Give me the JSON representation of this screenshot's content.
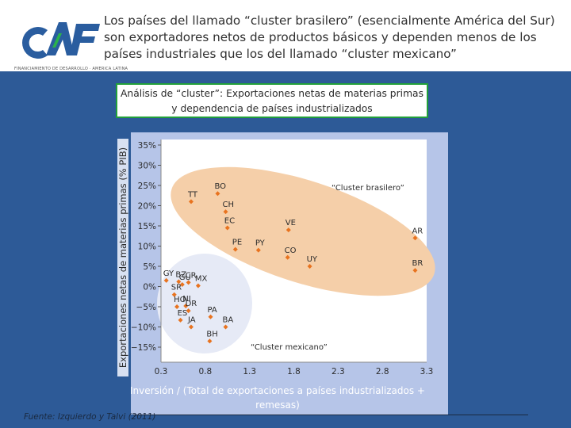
{
  "header": {
    "title": "Los países del llamado “cluster brasilero” (esencialmente América del Sur) son exportadores netos de productos básicos y dependen menos de los países industriales que los del llamado “cluster mexicano”",
    "logo_text": "CAF",
    "logo_tagline": "FINANCIAMIENTO DE DESARROLLO · AMERICA LATINA",
    "logo_color": "#2a5d9f",
    "logo_accent": "#2bb24c"
  },
  "source": "Fuente: Izquierdo y Talvi (2011)",
  "chart_data": {
    "type": "scatter",
    "title": "Análisis de “cluster”: Exportaciones netas de materias primas y dependencia de países industrializados",
    "xlabel": "Inversión / (Total de exportaciones a países industrializados + remesas)",
    "ylabel": "Exportaciones netas de materias primas (% PIB)",
    "xlim": [
      0.3,
      3.3
    ],
    "ylim": [
      -17,
      36
    ],
    "x_ticks": [
      "0.3",
      "0.8",
      "1.3",
      "1.8",
      "2.3",
      "2.8",
      "3.3"
    ],
    "y_ticks": [
      "35%",
      "30%",
      "25%",
      "20%",
      "15%",
      "10%",
      "5%",
      "0%",
      "−5%",
      "−10%",
      "−15%"
    ],
    "grid": false,
    "point_color": "#e8731f",
    "series": [
      {
        "name": "“Cluster brasilero”",
        "color": "#f5cfa9",
        "points": [
          {
            "label": "TT",
            "x": 0.64,
            "y": 21.0
          },
          {
            "label": "BO",
            "x": 0.94,
            "y": 23.0
          },
          {
            "label": "CH",
            "x": 1.03,
            "y": 18.5
          },
          {
            "label": "EC",
            "x": 1.05,
            "y": 14.5
          },
          {
            "label": "VE",
            "x": 1.74,
            "y": 14.0
          },
          {
            "label": "PE",
            "x": 1.14,
            "y": 9.2
          },
          {
            "label": "PY",
            "x": 1.4,
            "y": 9.0
          },
          {
            "label": "CO",
            "x": 1.73,
            "y": 7.2
          },
          {
            "label": "UY",
            "x": 1.98,
            "y": 5.0
          },
          {
            "label": "AR",
            "x": 3.17,
            "y": 12.0
          },
          {
            "label": "BR",
            "x": 3.17,
            "y": 4.0
          }
        ]
      },
      {
        "name": "“Cluster mexicano”",
        "color": "#e6eaf6",
        "points": [
          {
            "label": "GY",
            "x": 0.36,
            "y": 1.5
          },
          {
            "label": "BZ",
            "x": 0.5,
            "y": 1.2
          },
          {
            "label": "CR",
            "x": 0.61,
            "y": 1.0
          },
          {
            "label": "GU",
            "x": 0.54,
            "y": 0.5
          },
          {
            "label": "MX",
            "x": 0.72,
            "y": 0.2
          },
          {
            "label": "SR",
            "x": 0.45,
            "y": -2.0
          },
          {
            "label": "NI",
            "x": 0.58,
            "y": -4.8
          },
          {
            "label": "HO",
            "x": 0.48,
            "y": -5.0
          },
          {
            "label": "DR",
            "x": 0.61,
            "y": -6.0
          },
          {
            "label": "ES",
            "x": 0.52,
            "y": -8.3
          },
          {
            "label": "PA",
            "x": 0.86,
            "y": -7.5
          },
          {
            "label": "JA",
            "x": 0.64,
            "y": -10.0
          },
          {
            "label": "BA",
            "x": 1.03,
            "y": -10.0
          },
          {
            "label": "BH",
            "x": 0.85,
            "y": -13.5
          }
        ]
      }
    ]
  }
}
